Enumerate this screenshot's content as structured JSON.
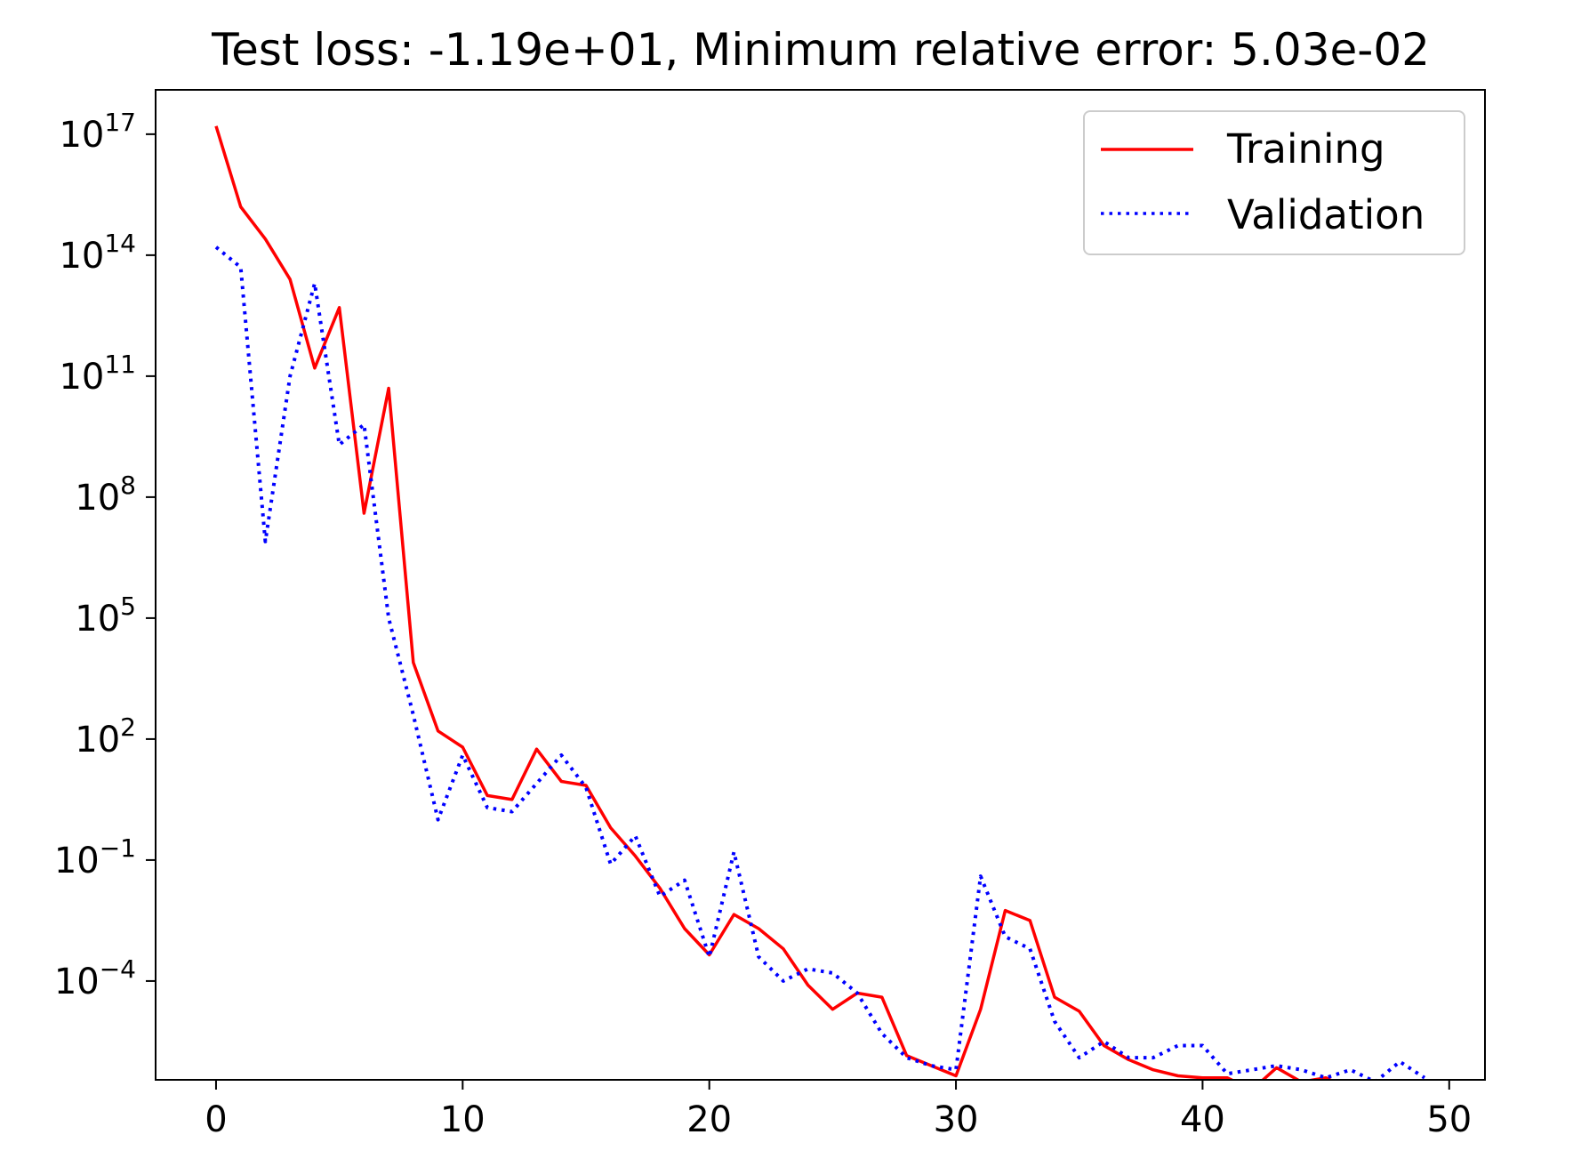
{
  "chart_data": {
    "type": "line",
    "title": "Test loss: -1.19e+01, Minimum relative error: 5.03e-02",
    "xlabel": "",
    "ylabel": "",
    "yscale": "log",
    "xlim": [
      -2.45,
      51.45
    ],
    "ylim_log10": [
      -6.45,
      18.1
    ],
    "xticks": [
      0,
      10,
      20,
      30,
      40,
      50
    ],
    "xtick_labels": [
      "0",
      "10",
      "20",
      "30",
      "40",
      "50"
    ],
    "yticks": [
      {
        "base": "10",
        "exp": "17",
        "log10": 17
      },
      {
        "base": "10",
        "exp": "14",
        "log10": 14
      },
      {
        "base": "10",
        "exp": "11",
        "log10": 11
      },
      {
        "base": "10",
        "exp": "8",
        "log10": 8
      },
      {
        "base": "10",
        "exp": "5",
        "log10": 5
      },
      {
        "base": "10",
        "exp": "2",
        "log10": 2
      },
      {
        "base": "10",
        "exp": "−1",
        "log10": -1
      },
      {
        "base": "10",
        "exp": "−4",
        "log10": -4
      }
    ],
    "grid": false,
    "legend_position": "top-right",
    "x": [
      0,
      1,
      2,
      3,
      4,
      5,
      6,
      7,
      8,
      9,
      10,
      11,
      12,
      13,
      14,
      15,
      16,
      17,
      18,
      19,
      20,
      21,
      22,
      23,
      24,
      25,
      26,
      27,
      28,
      29,
      30,
      31,
      32,
      33,
      34,
      35,
      36,
      37,
      38,
      39,
      40,
      41,
      42,
      43,
      44,
      45,
      46,
      47,
      48,
      49
    ],
    "series": [
      {
        "name": "Training",
        "color": "#ff0000",
        "style": "solid",
        "values_log10": [
          17.2,
          15.2,
          14.4,
          13.4,
          11.2,
          12.7,
          7.6,
          10.7,
          3.9,
          2.2,
          1.8,
          0.6,
          0.5,
          1.75,
          0.95,
          0.85,
          -0.2,
          -0.9,
          -1.7,
          -2.7,
          -3.35,
          -2.35,
          -2.7,
          -3.2,
          -4.1,
          -4.7,
          -4.3,
          -4.4,
          -5.85,
          -6.1,
          -6.35,
          -4.7,
          -2.25,
          -2.5,
          -4.4,
          -4.75,
          -5.6,
          -5.95,
          -6.2,
          -6.35,
          -6.4,
          -6.4,
          -6.7,
          -6.15,
          -6.5,
          -6.4,
          -6.7,
          -6.8,
          -6.77,
          -6.7
        ]
      },
      {
        "name": "Validation",
        "color": "#0000ff",
        "style": "dotted",
        "values_log10": [
          14.2,
          13.7,
          6.9,
          11.0,
          13.3,
          9.3,
          9.8,
          5.0,
          2.6,
          0.0,
          1.6,
          0.3,
          0.2,
          0.9,
          1.6,
          0.8,
          -1.1,
          -0.4,
          -1.9,
          -1.5,
          -3.4,
          -0.8,
          -3.4,
          -4.0,
          -3.7,
          -3.8,
          -4.3,
          -5.3,
          -5.9,
          -6.1,
          -6.2,
          -1.4,
          -2.9,
          -3.2,
          -5.0,
          -5.9,
          -5.5,
          -5.9,
          -5.9,
          -5.6,
          -5.6,
          -6.3,
          -6.2,
          -6.1,
          -6.2,
          -6.4,
          -6.2,
          -6.5,
          -6.0,
          -6.4
        ]
      }
    ]
  }
}
